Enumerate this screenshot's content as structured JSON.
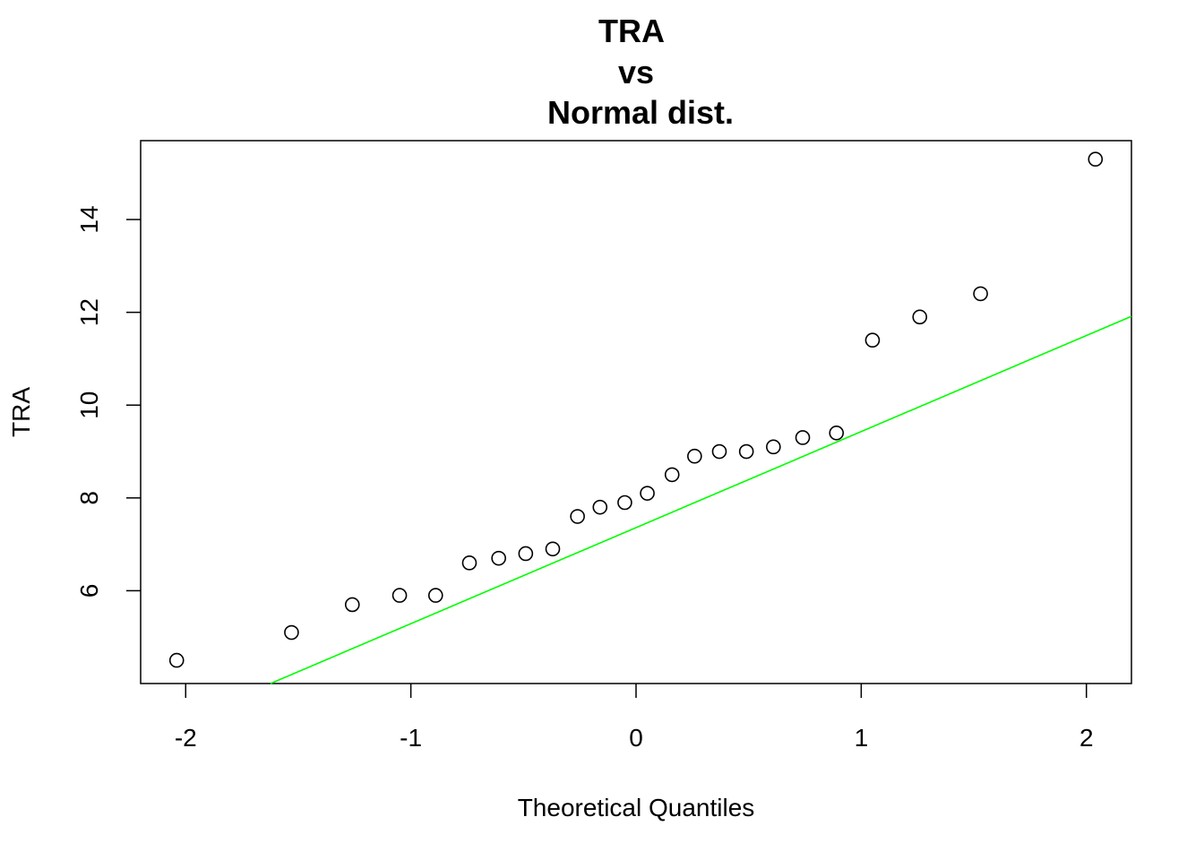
{
  "chart_data": {
    "type": "scatter",
    "title_lines": [
      "TRA",
      "vs",
      "Normal dist."
    ],
    "xlabel": "Theoretical Quantiles",
    "ylabel": "TRA",
    "xlim": [
      -2.2,
      2.2
    ],
    "ylim": [
      4.0,
      15.7
    ],
    "xticks": [
      {
        "value": -2,
        "label": "-2"
      },
      {
        "value": -1,
        "label": "-1"
      },
      {
        "value": 0,
        "label": "0"
      },
      {
        "value": 1,
        "label": "1"
      },
      {
        "value": 2,
        "label": "2"
      }
    ],
    "yticks": [
      {
        "value": 6,
        "label": "6"
      },
      {
        "value": 8,
        "label": "8"
      },
      {
        "value": 10,
        "label": "10"
      },
      {
        "value": 12,
        "label": "12"
      },
      {
        "value": 14,
        "label": "14"
      }
    ],
    "points": {
      "x": [
        -2.04,
        -1.53,
        -1.26,
        -1.05,
        -0.89,
        -0.74,
        -0.61,
        -0.49,
        -0.37,
        -0.26,
        -0.16,
        -0.05,
        0.05,
        0.16,
        0.26,
        0.37,
        0.49,
        0.61,
        0.74,
        0.89,
        1.05,
        1.26,
        1.53,
        2.04
      ],
      "y": [
        4.5,
        5.1,
        5.7,
        5.9,
        5.9,
        6.6,
        6.7,
        6.8,
        6.9,
        7.6,
        7.8,
        7.9,
        8.1,
        8.5,
        8.9,
        9.0,
        9.0,
        9.1,
        9.3,
        9.4,
        11.4,
        11.9,
        12.4,
        15.3
      ]
    },
    "reference_line": {
      "color": "#00ff00",
      "intercept": 7.36,
      "slope": 2.07
    },
    "point_color": "#000000",
    "grid": false,
    "legend": "none"
  }
}
